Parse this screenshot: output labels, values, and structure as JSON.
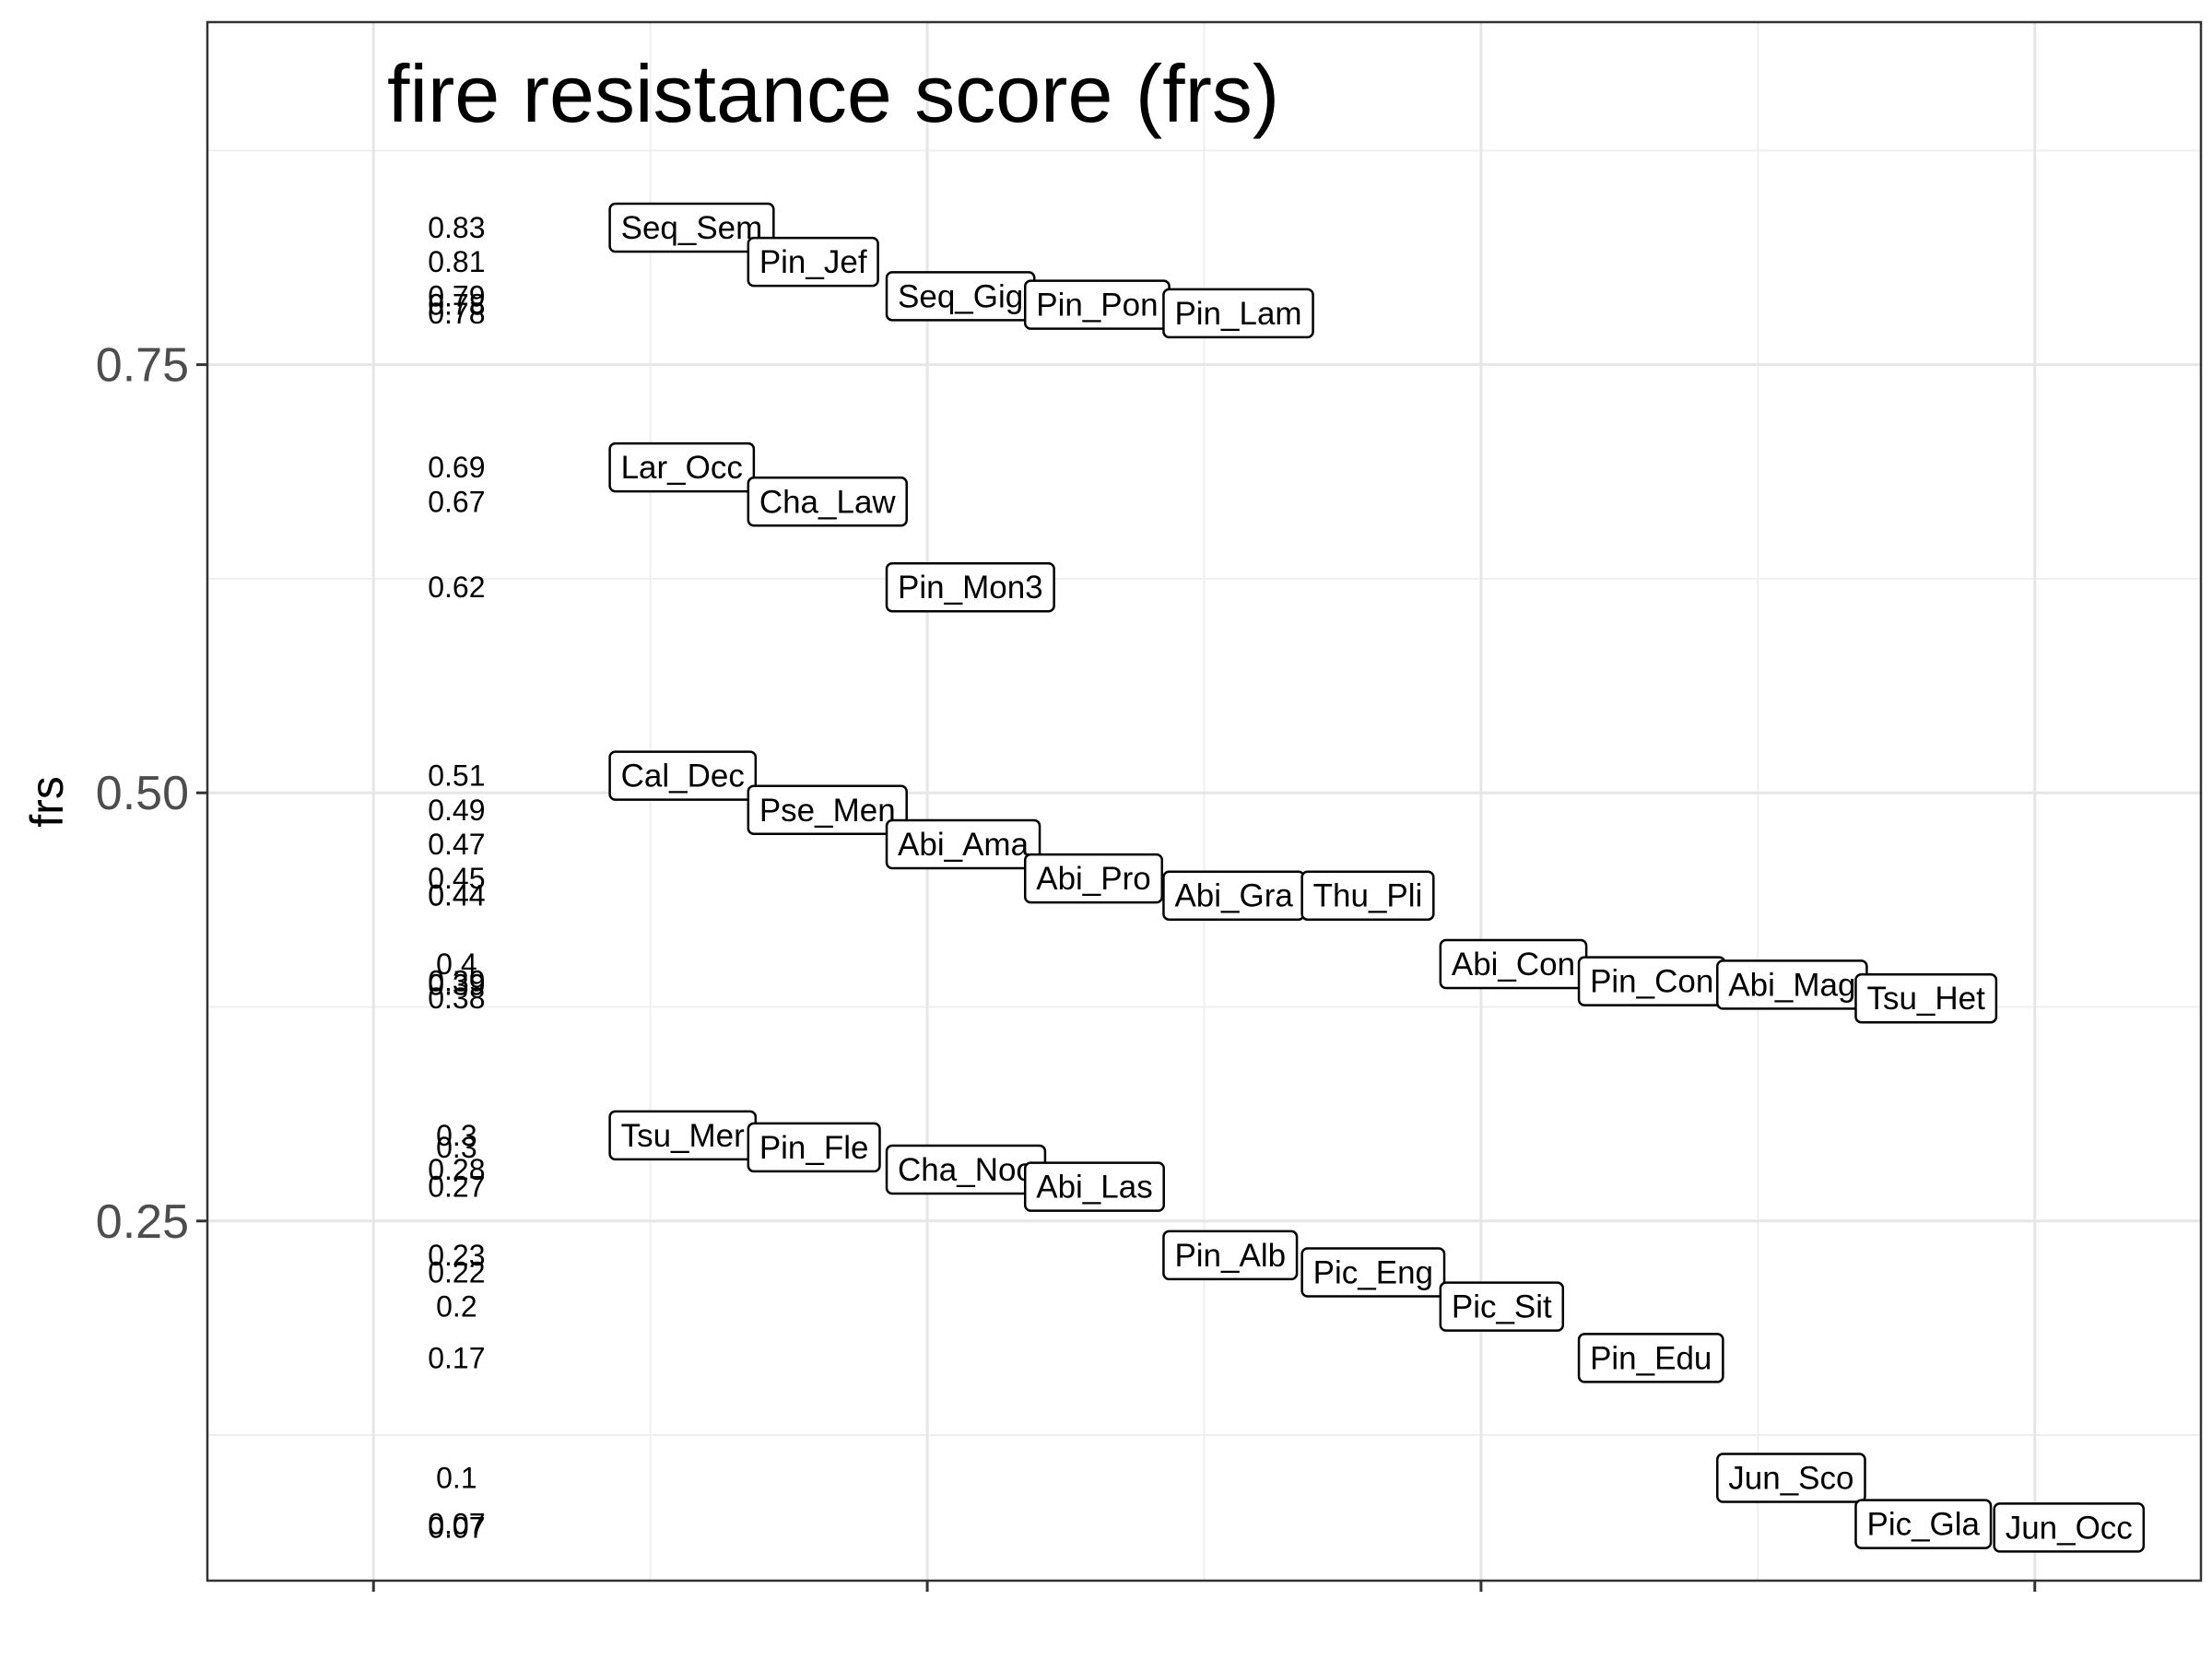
{
  "chart_data": {
    "type": "scatter",
    "title": "fire resistance score (frs)",
    "xlabel": "",
    "ylabel": "frs",
    "ylim": [
      0.04,
      0.95
    ],
    "xlim": [
      0.7,
      4.3
    ],
    "y_ticks": [
      0.25,
      0.5,
      0.75
    ],
    "y_tick_labels": [
      "0.25",
      "0.50",
      "0.75"
    ],
    "y_minor_ticks": [
      0.125,
      0.375,
      0.625,
      0.875
    ],
    "x_ticks": [
      1,
      2,
      3,
      4
    ],
    "x_minor_ticks": [
      1.5,
      2.5,
      3.5
    ],
    "grid": true,
    "points": [
      {
        "label": "Seq_Sem",
        "value": 0.83,
        "value_label": "0.83",
        "x": 1.43
      },
      {
        "label": "Pin_Jef",
        "value": 0.81,
        "value_label": "0.81",
        "x": 1.68
      },
      {
        "label": "Seq_Gig",
        "value": 0.79,
        "value_label": "0.79",
        "x": 1.93
      },
      {
        "label": "Pin_Pon",
        "value": 0.785,
        "value_label": "0.78",
        "x": 2.18
      },
      {
        "label": "Pin_Lam",
        "value": 0.78,
        "value_label": "0.78",
        "x": 2.43
      },
      {
        "label": "Lar_Occ",
        "value": 0.69,
        "value_label": "0.69",
        "x": 1.43
      },
      {
        "label": "Cha_Law",
        "value": 0.67,
        "value_label": "0.67",
        "x": 1.68
      },
      {
        "label": "Pin_Mon3",
        "value": 0.62,
        "value_label": "0.62",
        "x": 1.93
      },
      {
        "label": "Cal_Dec",
        "value": 0.51,
        "value_label": "0.51",
        "x": 1.43
      },
      {
        "label": "Pse_Men",
        "value": 0.49,
        "value_label": "0.49",
        "x": 1.68
      },
      {
        "label": "Abi_Ama",
        "value": 0.47,
        "value_label": "0.47",
        "x": 1.93
      },
      {
        "label": "Abi_Pro",
        "value": 0.45,
        "value_label": "0.45",
        "x": 2.18
      },
      {
        "label": "Abi_Gra",
        "value": 0.44,
        "value_label": "0.44",
        "x": 2.43
      },
      {
        "label": "Thu_Pli",
        "value": 0.44,
        "value_label": "0.44",
        "x": 2.68
      },
      {
        "label": "Abi_Con",
        "value": 0.4,
        "value_label": "0.4",
        "x": 2.93
      },
      {
        "label": "Pin_Con",
        "value": 0.39,
        "value_label": "0.39",
        "x": 3.18
      },
      {
        "label": "Abi_Mag",
        "value": 0.388,
        "value_label": "0.39",
        "x": 3.43
      },
      {
        "label": "Tsu_Het",
        "value": 0.38,
        "value_label": "0.38",
        "x": 3.68
      },
      {
        "label": "Tsu_Mer",
        "value": 0.3,
        "value_label": "0.3",
        "x": 1.43
      },
      {
        "label": "Pin_Fle",
        "value": 0.293,
        "value_label": "0.3",
        "x": 1.68
      },
      {
        "label": "Cha_Noo",
        "value": 0.28,
        "value_label": "0.28",
        "x": 1.93
      },
      {
        "label": "Abi_Las",
        "value": 0.27,
        "value_label": "0.27",
        "x": 2.18
      },
      {
        "label": "Pin_Alb",
        "value": 0.23,
        "value_label": "0.23",
        "x": 2.43
      },
      {
        "label": "Pic_Eng",
        "value": 0.22,
        "value_label": "0.22",
        "x": 2.68
      },
      {
        "label": "Pic_Sit",
        "value": 0.2,
        "value_label": "0.2",
        "x": 2.93
      },
      {
        "label": "Pin_Edu",
        "value": 0.17,
        "value_label": "0.17",
        "x": 3.18
      },
      {
        "label": "Jun_Sco",
        "value": 0.1,
        "value_label": "0.1",
        "x": 3.43
      },
      {
        "label": "Pic_Gla",
        "value": 0.073,
        "value_label": "0.07",
        "x": 3.68
      },
      {
        "label": "Jun_Occ",
        "value": 0.071,
        "value_label": "0.07",
        "x": 3.93
      }
    ],
    "value_label_x": 1.15
  }
}
